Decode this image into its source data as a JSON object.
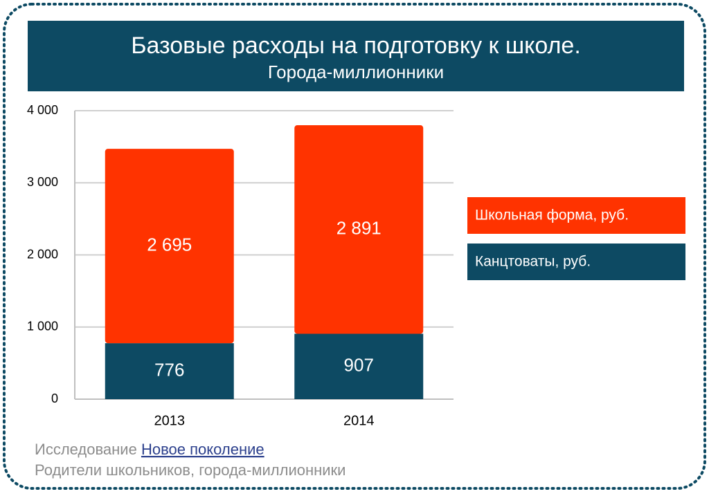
{
  "chart_data": {
    "type": "stacked-bar",
    "title": "Базовые расходы на подготовку к школе.",
    "subtitle": "Города-миллионники",
    "categories": [
      "2013",
      "2014"
    ],
    "series": [
      {
        "name": "Канцтоваты, руб.",
        "color": "#0d4a63",
        "values": [
          776,
          907
        ]
      },
      {
        "name": "Школьная форма, руб.",
        "color": "#ff3300",
        "values": [
          2695,
          2891
        ],
        "value_labels": [
          "2 695",
          "2 891"
        ]
      }
    ],
    "ylim": [
      0,
      4000
    ],
    "yticks": [
      0,
      {
        "value": 1000,
        "label": "1 000"
      },
      {
        "value": 2000,
        "label": "2 000"
      },
      {
        "value": 3000,
        "label": "3 000"
      },
      {
        "value": 4000,
        "label": "4 000"
      }
    ],
    "grid": true,
    "legend": "right"
  },
  "footer": {
    "prefix": "Исследование",
    "link": "Новое поколение",
    "note": "Родители школьников, города-миллионники"
  }
}
